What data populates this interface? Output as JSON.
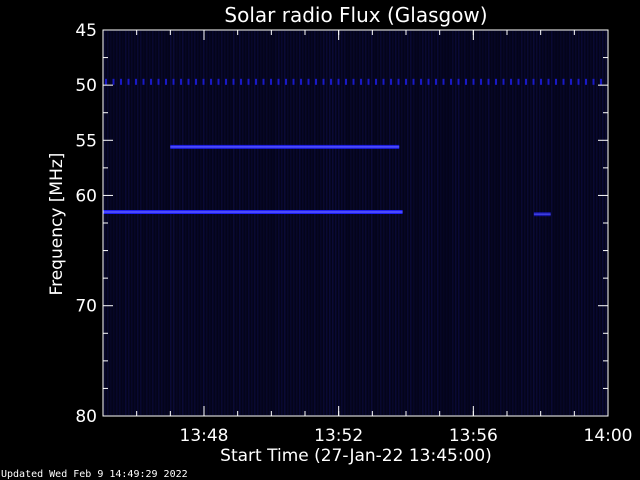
{
  "footer": {
    "updated": "Updated Wed Feb  9 14:49:29 2022"
  },
  "chart_data": {
    "type": "heatmap",
    "title": "Solar radio Flux (Glasgow)",
    "xlabel": "Start Time (27-Jan-22 13:45:00)",
    "ylabel": "Frequency [MHz]",
    "xlim": [
      "13:45",
      "14:00"
    ],
    "ylim": [
      45,
      80
    ],
    "y_inverted": true,
    "x_ticks": [
      "13:48",
      "13:52",
      "13:56",
      "14:00"
    ],
    "y_ticks": [
      45,
      50,
      55,
      60,
      70,
      80
    ],
    "colors": {
      "background": "#000000",
      "emission": "#2020ff",
      "axes": "#ffffff"
    },
    "bands": [
      {
        "freq": 49.7,
        "start": "13:45",
        "end": "14:00",
        "intensity": 0.75,
        "style": "dashed"
      },
      {
        "freq": 55.6,
        "start": "13:47",
        "end": "13:53.8",
        "intensity": 0.85,
        "style": "solid"
      },
      {
        "freq": 61.5,
        "start": "13:45",
        "end": "13:53.9",
        "intensity": 0.95,
        "style": "solid"
      },
      {
        "freq": 61.7,
        "start": "13:57.8",
        "end": "13:58.3",
        "intensity": 0.6,
        "style": "solid"
      }
    ]
  }
}
